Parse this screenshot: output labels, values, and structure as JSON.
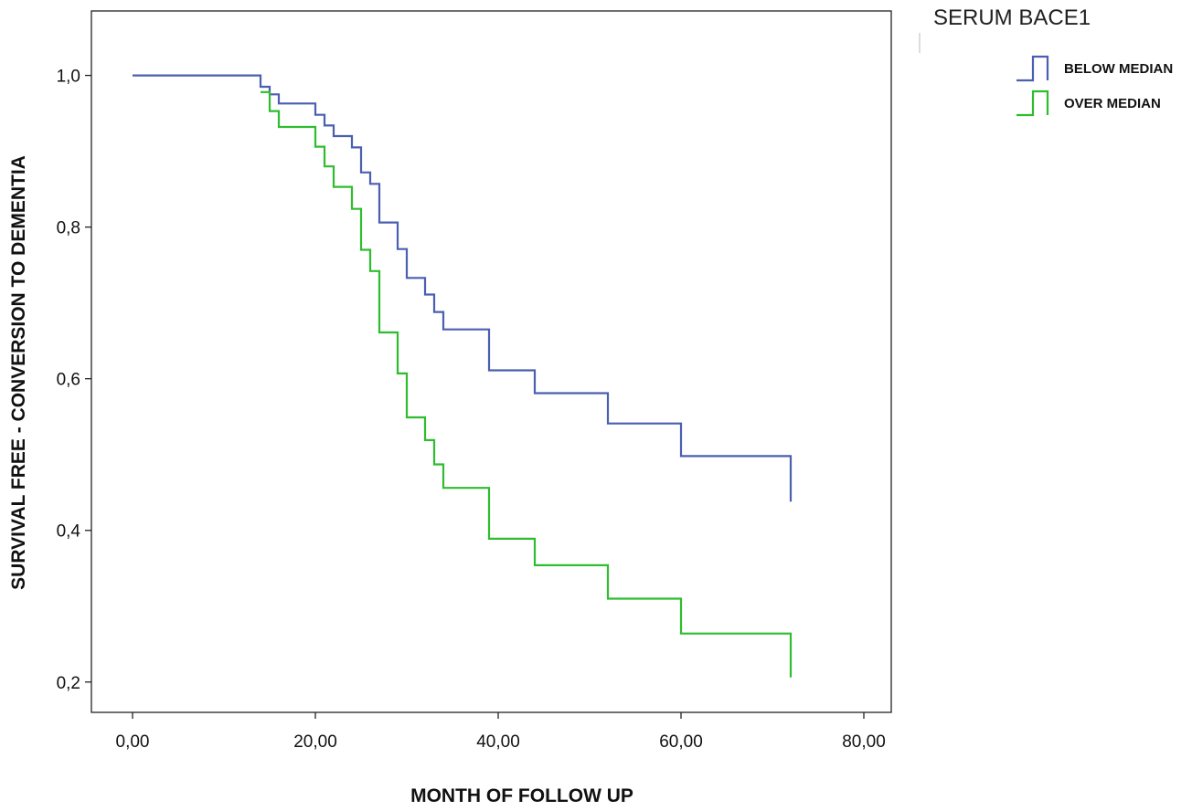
{
  "chart_data": {
    "type": "line",
    "title": "",
    "xlabel": "MONTH OF FOLLOW UP",
    "ylabel": "SURVIVAL FREE - CONVERSION TO DEMENTIA",
    "xlim": [
      -4.5,
      83
    ],
    "ylim": [
      0.16,
      1.085
    ],
    "x_ticks": [
      0,
      20,
      40,
      60,
      80
    ],
    "x_tick_labels": [
      "0,00",
      "20,00",
      "40,00",
      "60,00",
      "80,00"
    ],
    "y_ticks": [
      0.2,
      0.4,
      0.6,
      0.8,
      1.0
    ],
    "y_tick_labels": [
      "0,2",
      "0,4",
      "0,6",
      "0,8",
      "1,0"
    ],
    "grid": false,
    "legend": {
      "title": "SERUM BACE1",
      "placement": "outside-right-top"
    },
    "series": [
      {
        "name": "BELOW MEDIAN",
        "color": "#4a5fb0",
        "steps": [
          [
            0,
            1.0
          ],
          [
            14,
            0.985
          ],
          [
            15,
            0.975
          ],
          [
            16,
            0.963
          ],
          [
            20,
            0.948
          ],
          [
            21,
            0.934
          ],
          [
            22,
            0.92
          ],
          [
            24,
            0.905
          ],
          [
            25,
            0.872
          ],
          [
            26,
            0.857
          ],
          [
            27,
            0.806
          ],
          [
            29,
            0.771
          ],
          [
            30,
            0.733
          ],
          [
            32,
            0.711
          ],
          [
            33,
            0.688
          ],
          [
            34,
            0.665
          ],
          [
            39,
            0.611
          ],
          [
            44,
            0.581
          ],
          [
            52,
            0.541
          ],
          [
            60,
            0.498
          ],
          [
            72,
            0.438
          ]
        ]
      },
      {
        "name": "OVER MEDIAN",
        "color": "#2ebd2e",
        "steps": [
          [
            14,
            0.978
          ],
          [
            15,
            0.953
          ],
          [
            16,
            0.932
          ],
          [
            20,
            0.906
          ],
          [
            21,
            0.88
          ],
          [
            22,
            0.853
          ],
          [
            24,
            0.824
          ],
          [
            25,
            0.77
          ],
          [
            26,
            0.742
          ],
          [
            27,
            0.661
          ],
          [
            29,
            0.607
          ],
          [
            30,
            0.549
          ],
          [
            32,
            0.519
          ],
          [
            33,
            0.487
          ],
          [
            34,
            0.456
          ],
          [
            39,
            0.389
          ],
          [
            44,
            0.354
          ],
          [
            52,
            0.31
          ],
          [
            60,
            0.264
          ],
          [
            72,
            0.206
          ]
        ]
      }
    ]
  }
}
